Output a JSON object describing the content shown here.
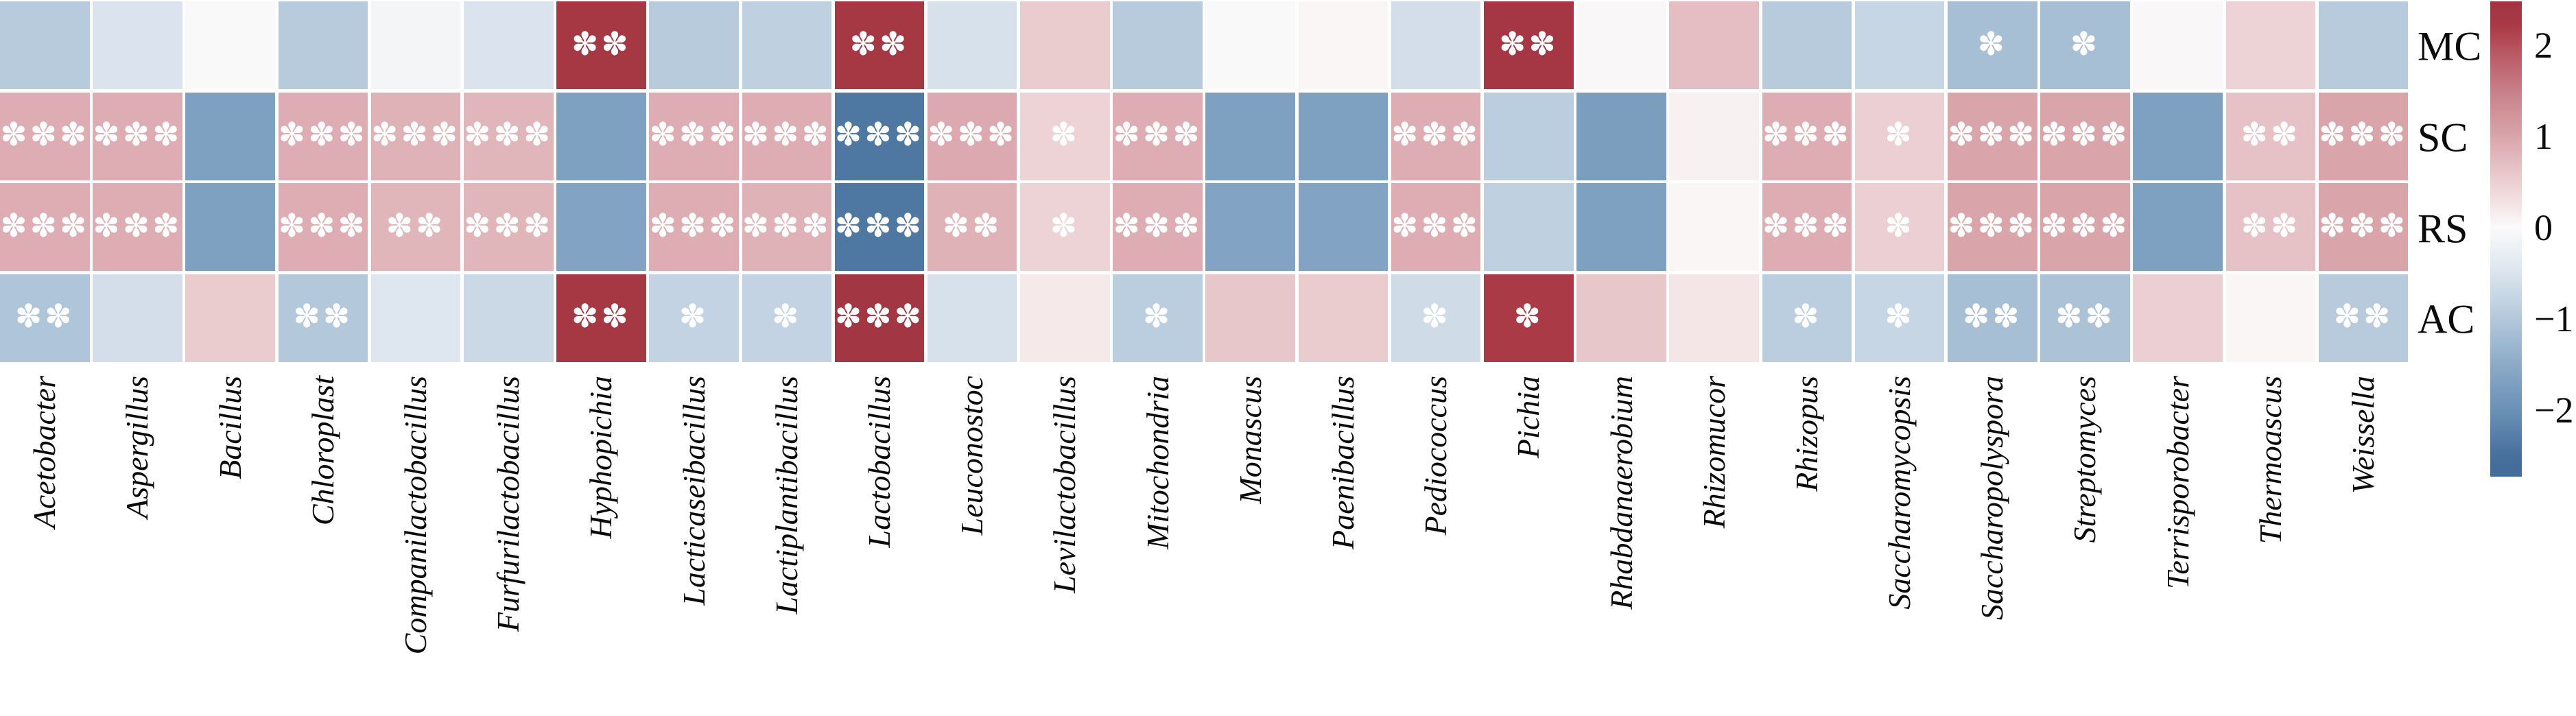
{
  "figure": {
    "kind": "annotated correlation heatmap with colorbar",
    "row_axis_side": "right",
    "column_axis_side": "bottom"
  },
  "chart_data": {
    "type": "heatmap",
    "columns": [
      "Acetobacter",
      "Aspergillus",
      "Bacillus",
      "Chloroplast",
      "Companilactobacillus",
      "Furfurilactobacillus",
      "Hyphopichia",
      "Lacticaseibacillus",
      "Lactiplantibacillus",
      "Lactobacillus",
      "Leuconostoc",
      "Levilactobacillus",
      "Mitochondria",
      "Monascus",
      "Paenibacillus",
      "Pediococcus",
      "Pichia",
      "Rhabdanaerobium",
      "Rhizomucor",
      "Rhizopus",
      "Saccharomycopsis",
      "Saccharopolyspora",
      "Streptomyces",
      "Terrisporobacter",
      "Thermoascus",
      "Weissella"
    ],
    "rows": [
      "MC",
      "SC",
      "RS",
      "AC"
    ],
    "series": [
      {
        "name": "MC",
        "values": [
          -0.95,
          -0.5,
          -0.02,
          -0.95,
          -0.12,
          -0.5,
          2.3,
          -0.95,
          -0.85,
          2.3,
          -0.55,
          0.55,
          -0.95,
          -0.02,
          0.05,
          -0.6,
          2.35,
          0.03,
          0.7,
          -0.95,
          -0.75,
          -1.15,
          -1.15,
          0.03,
          0.45,
          -0.95
        ],
        "stars": [
          "",
          "",
          "",
          "",
          "",
          "",
          "**",
          "",
          "",
          "**",
          "",
          "",
          "",
          "",
          "",
          "",
          "**",
          "",
          "",
          "",
          "",
          "*",
          "*",
          "",
          "",
          ""
        ]
      },
      {
        "name": "SC",
        "values": [
          0.9,
          0.9,
          -1.7,
          0.9,
          0.85,
          0.8,
          -1.7,
          0.9,
          0.9,
          -2.4,
          0.95,
          0.45,
          0.9,
          -1.7,
          -1.7,
          0.9,
          -0.9,
          -1.75,
          0.1,
          0.9,
          0.5,
          1.0,
          1.0,
          -1.7,
          0.65,
          1.0
        ],
        "stars": [
          "***",
          "***",
          "",
          "***",
          "***",
          "***",
          "",
          "***",
          "***",
          "***",
          "***",
          "*",
          "***",
          "",
          "",
          "***",
          "",
          "",
          "",
          "***",
          "*",
          "***",
          "***",
          "",
          "**",
          "***"
        ]
      },
      {
        "name": "RS",
        "values": [
          0.9,
          0.9,
          -1.7,
          0.9,
          0.8,
          0.8,
          -1.65,
          0.9,
          0.85,
          -2.4,
          0.85,
          0.45,
          0.9,
          -1.65,
          -1.65,
          0.9,
          -0.85,
          -1.7,
          0.05,
          0.9,
          0.5,
          1.0,
          1.0,
          -1.7,
          0.65,
          1.0
        ],
        "stars": [
          "***",
          "***",
          "",
          "***",
          "**",
          "***",
          "",
          "***",
          "***",
          "***",
          "**",
          "*",
          "***",
          "",
          "",
          "***",
          "",
          "",
          "",
          "***",
          "*",
          "***",
          "***",
          "",
          "**",
          "***"
        ]
      },
      {
        "name": "AC",
        "values": [
          -1.05,
          -0.6,
          0.55,
          -1.0,
          -0.45,
          -0.7,
          2.3,
          -0.8,
          -0.8,
          2.4,
          -0.55,
          0.2,
          -0.9,
          0.6,
          0.55,
          -0.65,
          2.2,
          0.6,
          0.25,
          -0.9,
          -0.75,
          -1.15,
          -1.1,
          0.5,
          0.05,
          -0.95
        ],
        "stars": [
          "**",
          "",
          "",
          "**",
          "",
          "",
          "**",
          "*",
          "*",
          "***",
          "",
          "",
          "*",
          "",
          "",
          "*",
          "*",
          "",
          "",
          "*",
          "*",
          "**",
          "**",
          "",
          "",
          "**"
        ]
      }
    ],
    "significance_legend": {
      "one_star": "*",
      "two_stars": "**",
      "three_stars": "***"
    },
    "star_glyph": "✽",
    "star_color": "#ffffff",
    "colorbar": {
      "tick_labels": [
        "2",
        "1",
        "0",
        "−1",
        "−2"
      ],
      "tick_values": [
        2,
        1,
        0,
        -1,
        -2
      ],
      "top_value": 2.48,
      "bottom_value": -2.73
    },
    "colormap_anchors": [
      [
        2.55,
        "#9c3340"
      ],
      [
        2.2,
        "#aa3a45"
      ],
      [
        2.0,
        "#b5505b"
      ],
      [
        1.5,
        "#c87f89"
      ],
      [
        1.0,
        "#d9a5ab"
      ],
      [
        0.5,
        "#eccfd2"
      ],
      [
        0.0,
        "#fbfafa"
      ],
      [
        -0.5,
        "#dbe4ee"
      ],
      [
        -1.0,
        "#b3c8db"
      ],
      [
        -1.5,
        "#8cabc8"
      ],
      [
        -2.0,
        "#6a90b6"
      ],
      [
        -2.55,
        "#446d9b"
      ]
    ],
    "grid_gap_color": "#ffffff",
    "text_color": "#0b0b0b"
  }
}
